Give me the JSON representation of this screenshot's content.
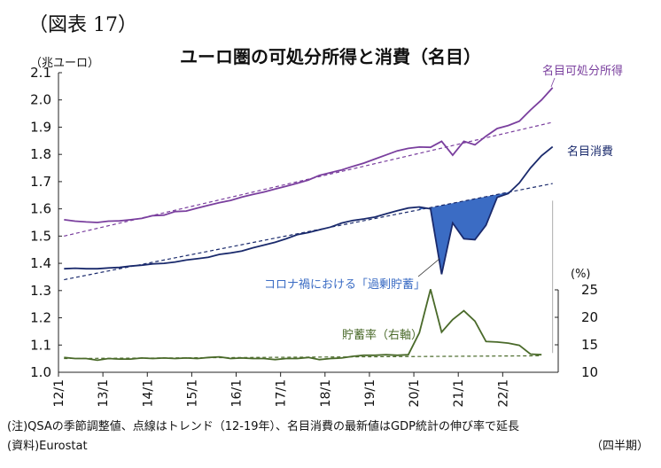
{
  "figure_label": "（図表 17）",
  "title": "ユーロ圏の可処分所得と消費（名目）",
  "unit_left": "（兆ユーロ）",
  "unit_right": "(%)",
  "note": "(注)QSAの季節調整値、点線はトレンド（12-19年）、名目消費の最新値はGDP統計の伸び率で延長",
  "source": "(資料)Eurostat",
  "x_unit": "（四半期）",
  "chart_data": {
    "type": "line",
    "ylim_left": [
      1.0,
      2.1
    ],
    "yticks_left": [
      "1.0",
      "1.1",
      "1.2",
      "1.3",
      "1.4",
      "1.5",
      "1.6",
      "1.7",
      "1.8",
      "1.9",
      "2.0",
      "2.1"
    ],
    "ylim_right": [
      10,
      25
    ],
    "yticks_right": [
      "10",
      "15",
      "20",
      "25"
    ],
    "x_tick_labels": [
      "12/1",
      "13/1",
      "14/1",
      "15/1",
      "16/1",
      "17/1",
      "18/1",
      "19/1",
      "20/1",
      "21/1",
      "22/1"
    ],
    "series": [
      {
        "name": "名目可処分所得",
        "color": "#7a3f9e",
        "axis": "left",
        "values": [
          1.56,
          1.555,
          1.552,
          1.55,
          1.555,
          1.556,
          1.56,
          1.565,
          1.575,
          1.577,
          1.59,
          1.592,
          1.603,
          1.613,
          1.623,
          1.631,
          1.643,
          1.653,
          1.662,
          1.673,
          1.683,
          1.694,
          1.706,
          1.723,
          1.733,
          1.743,
          1.756,
          1.768,
          1.783,
          1.798,
          1.813,
          1.822,
          1.827,
          1.826,
          1.848,
          1.797,
          1.848,
          1.835,
          1.867,
          1.895,
          1.906,
          1.922,
          1.963,
          2.0,
          2.045
        ]
      },
      {
        "name": "名目消費",
        "color": "#1a2a6c",
        "axis": "left",
        "values": [
          1.38,
          1.382,
          1.38,
          1.38,
          1.383,
          1.385,
          1.39,
          1.393,
          1.398,
          1.4,
          1.405,
          1.412,
          1.417,
          1.422,
          1.433,
          1.438,
          1.445,
          1.457,
          1.467,
          1.477,
          1.49,
          1.505,
          1.513,
          1.523,
          1.533,
          1.548,
          1.557,
          1.563,
          1.57,
          1.582,
          1.593,
          1.603,
          1.607,
          1.6,
          1.36,
          1.548,
          1.49,
          1.487,
          1.54,
          1.642,
          1.656,
          1.695,
          1.75,
          1.795,
          1.828
        ]
      },
      {
        "name": "貯蓄率（右軸）",
        "color": "#4a6a2a",
        "axis": "right",
        "values": [
          12.7,
          12.5,
          12.5,
          12.2,
          12.5,
          12.4,
          12.4,
          12.6,
          12.5,
          12.6,
          12.5,
          12.6,
          12.5,
          12.7,
          12.8,
          12.5,
          12.6,
          12.5,
          12.5,
          12.3,
          12.5,
          12.5,
          12.7,
          12.3,
          12.5,
          12.6,
          12.9,
          13.1,
          13.1,
          13.2,
          13.1,
          13.2,
          17.2,
          25.1,
          17.3,
          19.6,
          21.2,
          19.3,
          15.6,
          15.5,
          15.3,
          14.9,
          13.3,
          13.2
        ]
      }
    ],
    "trend_lines": [
      {
        "series": "名目可処分所得",
        "start": 1.5,
        "end": 1.918
      },
      {
        "series": "名目消費",
        "start": 1.34,
        "end": 1.693
      }
    ],
    "annotations": [
      {
        "text": "名目可処分所得",
        "color": "#7a3f9e"
      },
      {
        "text": "名目消費",
        "color": "#1a2a6c"
      },
      {
        "text": "貯蓄率（右軸）",
        "color": "#4a6a2a"
      },
      {
        "text": "コロナ禍における「過剰貯蓄」",
        "color": "#3b6cc4"
      }
    ],
    "shaded_area_color": "#3b6cc4",
    "grid": false
  }
}
